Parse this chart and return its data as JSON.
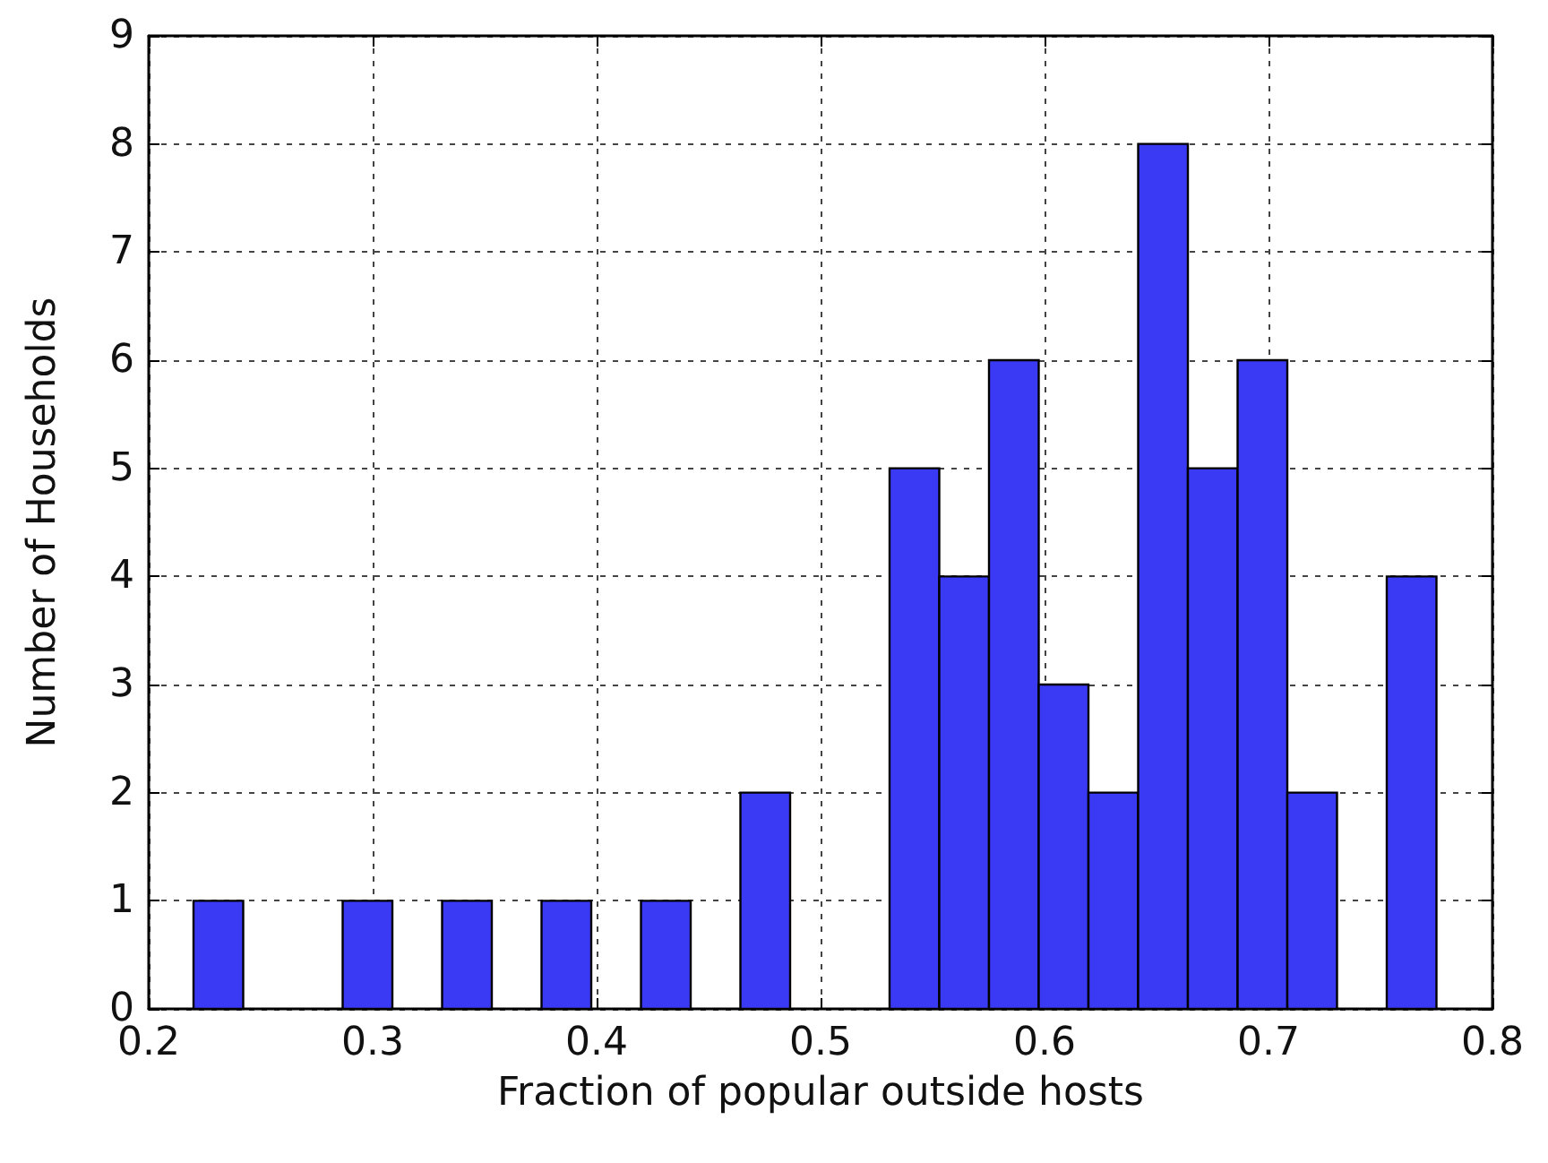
{
  "chart_data": {
    "type": "histogram",
    "xlabel": "Fraction of popular outside hosts",
    "ylabel": "Number of Households",
    "bins": [
      0.22,
      0.2422,
      0.2644,
      0.2866,
      0.3088,
      0.331,
      0.3532,
      0.3754,
      0.3976,
      0.4198,
      0.442,
      0.4642,
      0.4864,
      0.5086,
      0.5308,
      0.553,
      0.5752,
      0.5974,
      0.6196,
      0.6418,
      0.664,
      0.6862,
      0.7084,
      0.7306,
      0.7528,
      0.775
    ],
    "values": [
      1,
      0,
      0,
      1,
      0,
      1,
      0,
      1,
      0,
      1,
      0,
      2,
      0,
      0,
      5,
      4,
      6,
      3,
      2,
      8,
      5,
      6,
      2,
      0,
      4
    ],
    "color": "#3a3af5",
    "xlim": [
      0.2,
      0.8
    ],
    "xticks": [
      0.2,
      0.3,
      0.4,
      0.5,
      0.6,
      0.7,
      0.8
    ],
    "ylim": [
      0,
      9
    ],
    "yticks": [
      0,
      1,
      2,
      3,
      4,
      5,
      6,
      7,
      8,
      9
    ],
    "grid": true
  }
}
